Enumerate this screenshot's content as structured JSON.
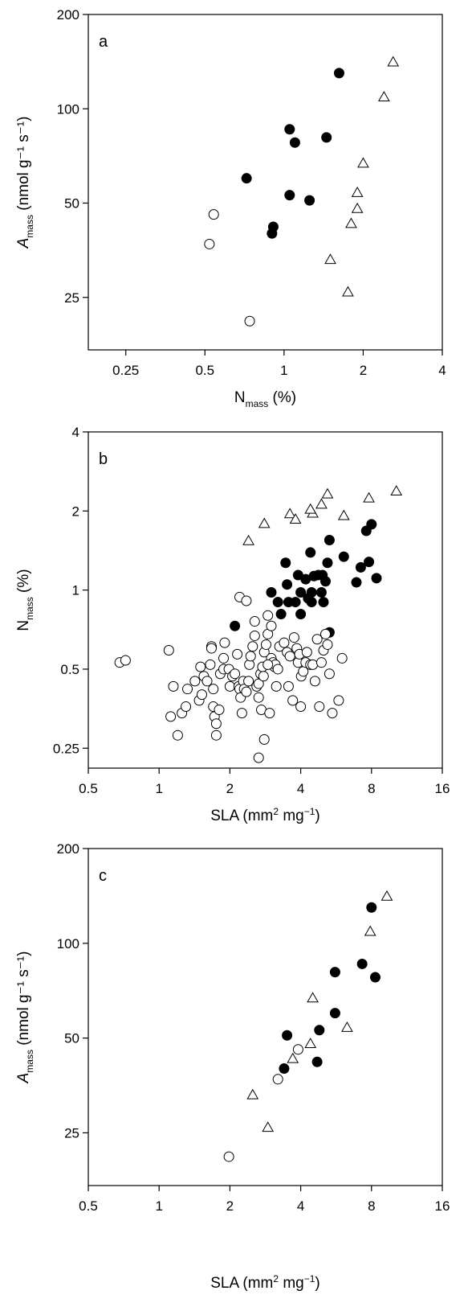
{
  "chart_data": [
    {
      "type": "scatter",
      "panel_label": "a",
      "x_scale": "log2",
      "y_scale": "log2",
      "xlim": [
        0.18,
        4
      ],
      "ylim": [
        17,
        200
      ],
      "x_ticks": [
        0.25,
        0.5,
        1,
        2,
        4
      ],
      "y_ticks": [
        25,
        50,
        100,
        200
      ],
      "x_tick_labels": [
        "0.25",
        "0.5",
        "1",
        "2",
        "4"
      ],
      "y_tick_labels": [
        "25",
        "50",
        "100",
        "200"
      ],
      "xlabel": {
        "main": "N",
        "sub": "mass",
        "unit": " (%)"
      },
      "ylabel": {
        "main": "A",
        "sub": "mass",
        "unit": " (nmol g⁻¹ s⁻¹)"
      },
      "series": [
        {
          "marker": "open-circle",
          "points": [
            [
              0.54,
              46
            ],
            [
              0.52,
              37
            ],
            [
              0.74,
              21
            ]
          ]
        },
        {
          "marker": "filled-circle",
          "points": [
            [
              1.62,
              130
            ],
            [
              1.05,
              86
            ],
            [
              1.1,
              78
            ],
            [
              1.45,
              81
            ],
            [
              0.72,
              60
            ],
            [
              1.05,
              53
            ],
            [
              1.25,
              51
            ],
            [
              0.91,
              42
            ],
            [
              0.9,
              40
            ]
          ]
        },
        {
          "marker": "open-triangle",
          "points": [
            [
              2.6,
              141
            ],
            [
              2.4,
              109
            ],
            [
              2.0,
              67
            ],
            [
              1.9,
              54
            ],
            [
              1.9,
              48
            ],
            [
              1.8,
              43
            ],
            [
              1.5,
              33
            ],
            [
              1.75,
              26
            ]
          ]
        }
      ]
    },
    {
      "type": "scatter",
      "panel_label": "b",
      "x_scale": "log2",
      "y_scale": "log2",
      "xlim": [
        0.5,
        16
      ],
      "ylim": [
        0.21,
        4
      ],
      "x_ticks": [
        0.5,
        1,
        2,
        4,
        8,
        16
      ],
      "y_ticks": [
        0.25,
        0.5,
        1,
        2,
        4
      ],
      "x_tick_labels": [
        "0.5",
        "1",
        "2",
        "4",
        "8",
        "16"
      ],
      "y_tick_labels": [
        "0.25",
        "0.5",
        "1",
        "2",
        "4"
      ],
      "xlabel": {
        "main": "SLA (mm",
        "sup1": "2",
        "rest": " mg",
        "sup2": "−1",
        "end": ")"
      },
      "ylabel": {
        "main": "N",
        "sub": "mass",
        "unit": " (%)"
      },
      "series": [
        {
          "marker": "open-triangle",
          "points": [
            [
              10.2,
              2.38
            ],
            [
              5.2,
              2.32
            ],
            [
              7.8,
              2.24
            ],
            [
              4.9,
              2.12
            ],
            [
              3.6,
              1.95
            ],
            [
              4.5,
              1.96
            ],
            [
              4.4,
              2.03
            ],
            [
              6.1,
              1.92
            ],
            [
              3.8,
              1.86
            ],
            [
              2.8,
              1.79
            ],
            [
              2.4,
              1.54
            ]
          ]
        },
        {
          "marker": "filled-circle",
          "points": [
            [
              8.0,
              1.78
            ],
            [
              7.6,
              1.68
            ],
            [
              5.3,
              1.55
            ],
            [
              4.4,
              1.39
            ],
            [
              6.1,
              1.34
            ],
            [
              3.45,
              1.27
            ],
            [
              5.2,
              1.27
            ],
            [
              7.8,
              1.28
            ],
            [
              7.2,
              1.22
            ],
            [
              3.9,
              1.14
            ],
            [
              4.2,
              1.1
            ],
            [
              4.55,
              1.13
            ],
            [
              4.75,
              1.14
            ],
            [
              4.95,
              1.14
            ],
            [
              5.1,
              1.08
            ],
            [
              3.5,
              1.05
            ],
            [
              6.9,
              1.07
            ],
            [
              8.4,
              1.11
            ],
            [
              4.0,
              0.98
            ],
            [
              4.45,
              0.98
            ],
            [
              4.9,
              0.98
            ],
            [
              3.0,
              0.98
            ],
            [
              4.3,
              0.93
            ],
            [
              3.2,
              0.9
            ],
            [
              3.55,
              0.9
            ],
            [
              3.8,
              0.9
            ],
            [
              4.45,
              0.9
            ],
            [
              5.0,
              0.9
            ],
            [
              3.3,
              0.81
            ],
            [
              4.0,
              0.81
            ],
            [
              2.1,
              0.73
            ],
            [
              5.3,
              0.69
            ]
          ]
        },
        {
          "marker": "open-circle",
          "points": [
            [
              0.68,
              0.53
            ],
            [
              0.72,
              0.54
            ],
            [
              1.1,
              0.59
            ],
            [
              1.15,
              0.43
            ],
            [
              1.12,
              0.33
            ],
            [
              1.2,
              0.28
            ],
            [
              1.25,
              0.34
            ],
            [
              1.3,
              0.36
            ],
            [
              1.32,
              0.42
            ],
            [
              1.42,
              0.45
            ],
            [
              1.48,
              0.38
            ],
            [
              1.52,
              0.4
            ],
            [
              1.5,
              0.51
            ],
            [
              1.55,
              0.47
            ],
            [
              1.6,
              0.45
            ],
            [
              1.67,
              0.61
            ],
            [
              1.67,
              0.6
            ],
            [
              1.65,
              0.52
            ],
            [
              1.7,
              0.42
            ],
            [
              1.7,
              0.36
            ],
            [
              1.72,
              0.33
            ],
            [
              1.75,
              0.28
            ],
            [
              1.75,
              0.31
            ],
            [
              1.8,
              0.35
            ],
            [
              1.82,
              0.48
            ],
            [
              1.88,
              0.5
            ],
            [
              1.88,
              0.55
            ],
            [
              1.9,
              0.63
            ],
            [
              1.98,
              0.5
            ],
            [
              2.0,
              0.43
            ],
            [
              2.05,
              0.47
            ],
            [
              2.1,
              0.48
            ],
            [
              2.15,
              0.57
            ],
            [
              2.18,
              0.43
            ],
            [
              2.2,
              0.42
            ],
            [
              2.22,
              0.39
            ],
            [
              2.25,
              0.34
            ],
            [
              2.28,
              0.45
            ],
            [
              2.3,
              0.42
            ],
            [
              2.35,
              0.41
            ],
            [
              2.4,
              0.45
            ],
            [
              2.42,
              0.52
            ],
            [
              2.45,
              0.56
            ],
            [
              2.5,
              0.61
            ],
            [
              2.55,
              0.67
            ],
            [
              2.55,
              0.76
            ],
            [
              2.6,
              0.43
            ],
            [
              2.65,
              0.39
            ],
            [
              2.65,
              0.44
            ],
            [
              2.7,
              0.48
            ],
            [
              2.72,
              0.35
            ],
            [
              2.75,
              0.51
            ],
            [
              2.78,
              0.47
            ],
            [
              2.8,
              0.58
            ],
            [
              2.85,
              0.62
            ],
            [
              2.9,
              0.68
            ],
            [
              2.9,
              0.8
            ],
            [
              2.95,
              0.34
            ],
            [
              3.0,
              0.73
            ],
            [
              3.0,
              0.55
            ],
            [
              3.05,
              0.53
            ],
            [
              3.1,
              0.51
            ],
            [
              3.12,
              0.52
            ],
            [
              3.15,
              0.43
            ],
            [
              3.2,
              0.5
            ],
            [
              3.25,
              0.61
            ],
            [
              3.4,
              0.63
            ],
            [
              3.5,
              0.58
            ],
            [
              3.55,
              0.43
            ],
            [
              3.6,
              0.56
            ],
            [
              3.7,
              0.38
            ],
            [
              3.75,
              0.66
            ],
            [
              3.85,
              0.6
            ],
            [
              3.9,
              0.53
            ],
            [
              3.95,
              0.57
            ],
            [
              4.0,
              0.36
            ],
            [
              4.02,
              0.47
            ],
            [
              4.1,
              0.49
            ],
            [
              4.2,
              0.53
            ],
            [
              4.25,
              0.58
            ],
            [
              4.4,
              0.52
            ],
            [
              4.5,
              0.52
            ],
            [
              4.6,
              0.45
            ],
            [
              4.7,
              0.65
            ],
            [
              4.8,
              0.36
            ],
            [
              4.9,
              0.53
            ],
            [
              5.0,
              0.59
            ],
            [
              5.1,
              0.68
            ],
            [
              5.2,
              0.62
            ],
            [
              5.3,
              0.48
            ],
            [
              5.45,
              0.34
            ],
            [
              5.8,
              0.38
            ],
            [
              6.0,
              0.55
            ],
            [
              2.2,
              0.94
            ],
            [
              2.35,
              0.91
            ],
            [
              2.9,
              0.52
            ],
            [
              2.8,
              0.27
            ],
            [
              2.65,
              0.23
            ]
          ]
        }
      ]
    },
    {
      "type": "scatter",
      "panel_label": "c",
      "x_scale": "log2",
      "y_scale": "log2",
      "xlim": [
        0.5,
        16
      ],
      "ylim": [
        17,
        200
      ],
      "x_ticks": [
        0.5,
        1,
        2,
        4,
        8,
        16
      ],
      "y_ticks": [
        25,
        50,
        100,
        200
      ],
      "x_tick_labels": [
        "0.5",
        "1",
        "2",
        "4",
        "8",
        "16"
      ],
      "y_tick_labels": [
        "25",
        "50",
        "100",
        "200"
      ],
      "xlabel": {
        "main": "SLA (mm",
        "sup1": "2",
        "rest": " mg",
        "sup2": "−1",
        "end": ")"
      },
      "ylabel": {
        "main": "A",
        "sub": "mass",
        "unit": " (nmol g⁻¹ s⁻¹)"
      },
      "series": [
        {
          "marker": "open-circle",
          "points": [
            [
              3.9,
              46
            ],
            [
              3.2,
              37
            ],
            [
              1.98,
              21
            ]
          ]
        },
        {
          "marker": "filled-circle",
          "points": [
            [
              8.0,
              130
            ],
            [
              7.3,
              86
            ],
            [
              8.3,
              78
            ],
            [
              5.6,
              81
            ],
            [
              5.6,
              60
            ],
            [
              4.8,
              53
            ],
            [
              3.5,
              51
            ],
            [
              3.4,
              40
            ],
            [
              4.7,
              42
            ]
          ]
        },
        {
          "marker": "open-triangle",
          "points": [
            [
              9.3,
              141
            ],
            [
              7.9,
              109
            ],
            [
              4.5,
              67
            ],
            [
              6.3,
              54
            ],
            [
              4.4,
              48
            ],
            [
              3.7,
              43
            ],
            [
              2.5,
              33
            ],
            [
              2.9,
              26
            ]
          ]
        }
      ]
    }
  ]
}
